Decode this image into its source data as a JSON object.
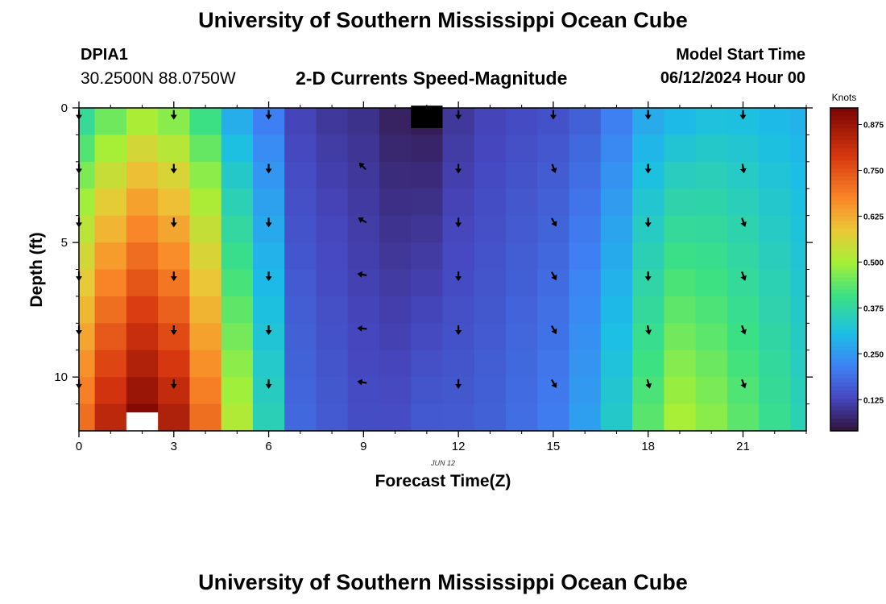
{
  "header": {
    "title": "University of Southern Mississippi Ocean Cube",
    "station_id": "DPIA1",
    "coordinates": "30.2500N  88.0750W",
    "chart_title": "2-D Currents Speed-Magnitude",
    "start_label": "Model Start Time",
    "start_value": "06/12/2024 Hour 00"
  },
  "footer": {
    "title": "University of Southern Mississippi Ocean Cube"
  },
  "chart_data": {
    "type": "heatmap",
    "title": "2-D Currents Speed-Magnitude",
    "xlabel": "Forecast Time(Z)",
    "ylabel": "Depth (ft)",
    "date_label": "JUN 12",
    "xlim": [
      0,
      23
    ],
    "ylim": [
      12,
      0
    ],
    "x_ticks": [
      0,
      3,
      6,
      9,
      12,
      15,
      18,
      21
    ],
    "y_ticks": [
      0,
      5,
      10
    ],
    "colorbar": {
      "label": "Knots",
      "range": [
        0.04,
        0.92
      ],
      "ticks": [
        "0.125",
        "0.250",
        "0.375",
        "0.500",
        "0.625",
        "0.750",
        "0.875"
      ],
      "tick_values": [
        0.125,
        0.25,
        0.375,
        0.5,
        0.625,
        0.75,
        0.875
      ]
    },
    "x_hours": [
      0,
      1,
      2,
      3,
      4,
      5,
      6,
      7,
      8,
      9,
      10,
      11,
      12,
      13,
      14,
      15,
      16,
      17,
      18,
      19,
      20,
      21,
      22,
      23
    ],
    "depth_rows_ft": [
      0.5,
      1.5,
      2.5,
      3.5,
      4.5,
      5.5,
      6.5,
      7.5,
      8.5,
      9.5,
      10.5,
      11.5
    ],
    "speed_knots_profile": {
      "hours": [
        0,
        1,
        2,
        3,
        4,
        5,
        6,
        7,
        8,
        9,
        10,
        11,
        12,
        13,
        14,
        15,
        16,
        17,
        18,
        19,
        20,
        21,
        22,
        23
      ],
      "surface": [
        0.36,
        0.42,
        0.47,
        0.44,
        0.38,
        0.26,
        0.2,
        0.12,
        0.1,
        0.09,
        0.06,
        0.05,
        0.1,
        0.12,
        0.13,
        0.14,
        0.16,
        0.2,
        0.26,
        0.28,
        0.3,
        0.3,
        0.29,
        0.28
      ],
      "bottom": [
        0.72,
        0.84,
        0.92,
        0.86,
        0.72,
        0.52,
        0.36,
        0.18,
        0.16,
        0.14,
        0.14,
        0.16,
        0.16,
        0.17,
        0.19,
        0.21,
        0.26,
        0.34,
        0.44,
        0.51,
        0.48,
        0.44,
        0.4,
        0.36
      ]
    },
    "arrow_rows_ft": [
      0.2,
      2.2,
      4.2,
      6.2,
      8.2,
      10.2
    ],
    "arrow_hours": [
      0,
      3,
      6,
      9,
      12,
      15,
      18,
      21
    ],
    "arrow_directions_deg": [
      [
        180,
        180,
        180,
        null,
        180,
        180,
        180,
        180
      ],
      [
        180,
        180,
        180,
        315,
        180,
        160,
        180,
        170
      ],
      [
        180,
        180,
        180,
        300,
        180,
        150,
        180,
        160
      ],
      [
        180,
        180,
        180,
        280,
        180,
        150,
        180,
        160
      ],
      [
        180,
        180,
        180,
        275,
        180,
        150,
        170,
        160
      ],
      [
        180,
        180,
        180,
        280,
        180,
        150,
        165,
        160
      ]
    ],
    "missing_cells": [
      {
        "hour": 11,
        "depth_ft": 0.3,
        "color": "#000000"
      },
      {
        "hour": 2,
        "depth_ft": 11.7,
        "color": "#ffffff"
      }
    ]
  }
}
